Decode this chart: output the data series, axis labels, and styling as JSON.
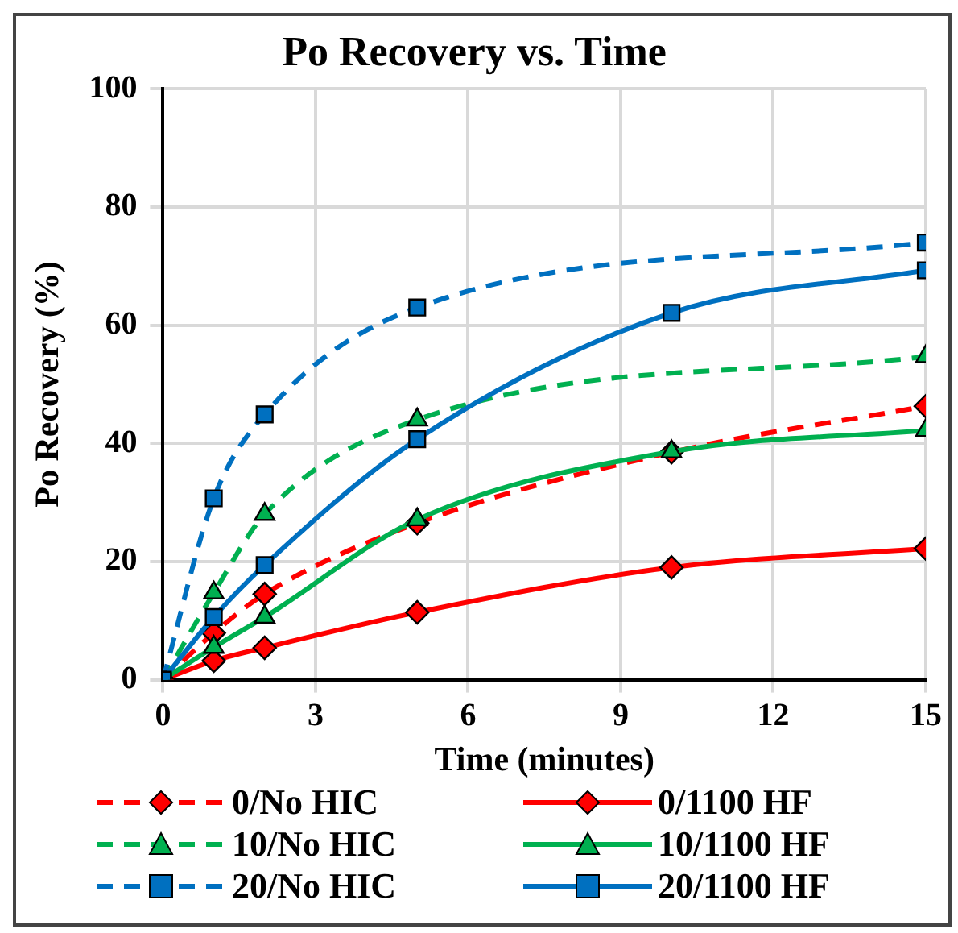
{
  "chart_data": {
    "type": "line",
    "title": "Po Recovery vs. Time",
    "xlabel": "Time (minutes)",
    "ylabel": "Po Recovery (%)",
    "xlim": [
      0,
      15
    ],
    "xticks": [
      0,
      3,
      6,
      9,
      12,
      15
    ],
    "ylim": [
      0,
      100
    ],
    "yticks": [
      0,
      20,
      40,
      60,
      80,
      100
    ],
    "grid": true,
    "legend": "bottom",
    "series": [
      {
        "name": "0/No HIC",
        "color": "#ff0000",
        "marker": "diamond",
        "line_style": "dashed",
        "x": [
          0,
          1,
          2,
          5,
          10,
          15
        ],
        "values": [
          0,
          7.9,
          14.5,
          26.5,
          38.5,
          46.3
        ]
      },
      {
        "name": "0/1100 HF",
        "color": "#ff0000",
        "marker": "diamond",
        "line_style": "solid",
        "x": [
          0,
          1,
          2,
          5,
          10,
          15
        ],
        "values": [
          0,
          3.2,
          5.4,
          11.4,
          19.0,
          22.2
        ]
      },
      {
        "name": "10/No HIC",
        "color": "#00b050",
        "marker": "triangle",
        "line_style": "dashed",
        "x": [
          0,
          1,
          2,
          5,
          15
        ],
        "values": [
          0,
          14.7,
          28.0,
          44.0,
          54.7
        ]
      },
      {
        "name": "10/1100 HF",
        "color": "#00b050",
        "marker": "triangle",
        "line_style": "solid",
        "x": [
          0,
          1,
          2,
          5,
          10,
          15
        ],
        "values": [
          0,
          5.5,
          10.6,
          27.1,
          38.6,
          42.2
        ]
      },
      {
        "name": "20/No HIC",
        "color": "#0070c0",
        "marker": "square",
        "line_style": "dashed",
        "x": [
          0,
          1,
          2,
          5,
          15
        ],
        "values": [
          0,
          30.7,
          44.9,
          63.0,
          74.0
        ]
      },
      {
        "name": "20/1100 HF",
        "color": "#0070c0",
        "marker": "square",
        "line_style": "solid",
        "x": [
          0,
          1,
          2,
          5,
          10,
          15
        ],
        "values": [
          0,
          10.6,
          19.4,
          40.7,
          62.1,
          69.3
        ]
      }
    ]
  }
}
